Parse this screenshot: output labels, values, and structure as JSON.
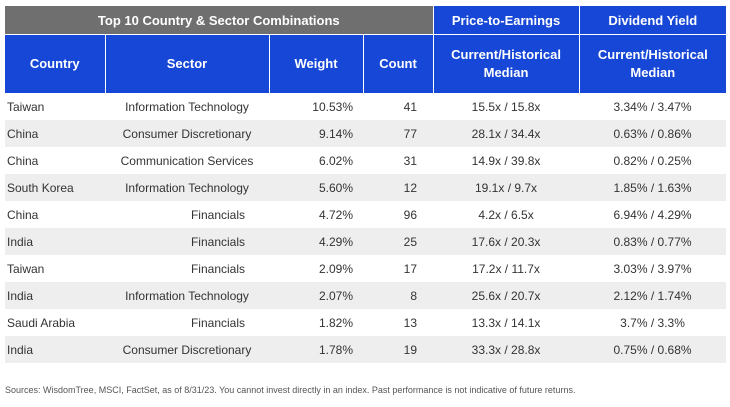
{
  "header": {
    "group_main": "Top 10 Country & Sector Combinations",
    "group_pe": "Price-to-Earnings",
    "group_dy": "Dividend Yield",
    "col_country": "Country",
    "col_sector": "Sector",
    "col_weight": "Weight",
    "col_count": "Count",
    "col_pe_line1": "Current/Historical",
    "col_pe_line2": "Median",
    "col_dy_line1": "Current/Historical",
    "col_dy_line2": "Median"
  },
  "rows": [
    {
      "country": "Taiwan",
      "sector": "Information Technology",
      "weight": "10.53%",
      "count": "41",
      "pe": "15.5x / 15.8x",
      "dy": "3.34% / 3.47%"
    },
    {
      "country": "China",
      "sector": "Consumer Discretionary",
      "weight": "9.14%",
      "count": "77",
      "pe": "28.1x / 34.4x",
      "dy": "0.63% / 0.86%"
    },
    {
      "country": "China",
      "sector": "Communication Services",
      "weight": "6.02%",
      "count": "31",
      "pe": "14.9x / 39.8x",
      "dy": "0.82% / 0.25%"
    },
    {
      "country": "South Korea",
      "sector": "Information Technology",
      "weight": "5.60%",
      "count": "12",
      "pe": "19.1x / 9.7x",
      "dy": "1.85% / 1.63%"
    },
    {
      "country": "China",
      "sector": "Financials",
      "weight": "4.72%",
      "count": "96",
      "pe": "4.2x / 6.5x",
      "dy": "6.94% / 4.29%"
    },
    {
      "country": "India",
      "sector": "Financials",
      "weight": "4.29%",
      "count": "25",
      "pe": "17.6x / 20.3x",
      "dy": "0.83% / 0.77%"
    },
    {
      "country": "Taiwan",
      "sector": "Financials",
      "weight": "2.09%",
      "count": "17",
      "pe": "17.2x / 11.7x",
      "dy": "3.03% / 3.97%"
    },
    {
      "country": "India",
      "sector": "Information Technology",
      "weight": "2.07%",
      "count": "8",
      "pe": "25.6x / 20.7x",
      "dy": "2.12% / 1.74%"
    },
    {
      "country": "Saudi Arabia",
      "sector": "Financials",
      "weight": "1.82%",
      "count": "13",
      "pe": "13.3x / 14.1x",
      "dy": "3.7% / 3.3%"
    },
    {
      "country": "India",
      "sector": "Consumer Discretionary",
      "weight": "1.78%",
      "count": "19",
      "pe": "33.3x / 28.8x",
      "dy": "0.75% / 0.68%"
    }
  ],
  "footnote": "Sources: WisdomTree, MSCI, FactSet, as of 8/31/23. You cannot invest directly in an index. Past performance is not indicative of future returns."
}
